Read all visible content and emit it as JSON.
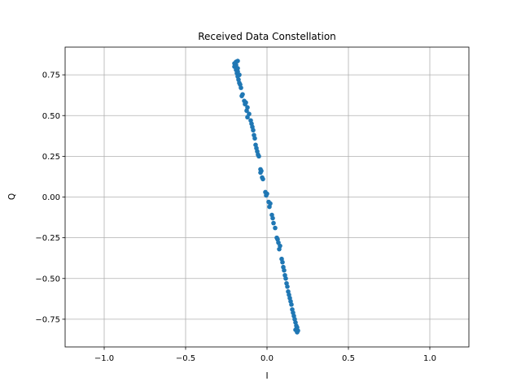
{
  "chart_data": {
    "type": "scatter",
    "title": "Received Data Constellation",
    "xlabel": "I",
    "ylabel": "Q",
    "xlim": [
      -1.24,
      1.24
    ],
    "ylim": [
      -0.92,
      0.92
    ],
    "x_ticks": [
      -1.0,
      -0.5,
      0.0,
      0.5,
      1.0
    ],
    "x_tick_labels": [
      "−1.0",
      "−0.5",
      "0.0",
      "0.5",
      "1.0"
    ],
    "y_ticks": [
      -0.75,
      -0.5,
      -0.25,
      0.0,
      0.25,
      0.5,
      0.75
    ],
    "y_tick_labels": [
      "−0.75",
      "−0.50",
      "−0.25",
      "0.00",
      "0.25",
      "0.50",
      "0.75"
    ],
    "grid": true,
    "marker_color": "#1f77b4",
    "series": [
      {
        "points": [
          [
            -0.19,
            0.83
          ],
          [
            -0.2,
            0.82
          ],
          [
            -0.18,
            0.835
          ],
          [
            -0.19,
            0.81
          ],
          [
            -0.2,
            0.8
          ],
          [
            -0.18,
            0.79
          ],
          [
            -0.19,
            0.78
          ],
          [
            -0.18,
            0.77
          ],
          [
            -0.185,
            0.76
          ],
          [
            -0.17,
            0.75
          ],
          [
            -0.18,
            0.74
          ],
          [
            -0.175,
            0.72
          ],
          [
            -0.17,
            0.7
          ],
          [
            -0.165,
            0.69
          ],
          [
            -0.16,
            0.67
          ],
          [
            -0.15,
            0.63
          ],
          [
            -0.155,
            0.62
          ],
          [
            -0.14,
            0.59
          ],
          [
            -0.13,
            0.58
          ],
          [
            -0.135,
            0.57
          ],
          [
            -0.12,
            0.55
          ],
          [
            -0.125,
            0.53
          ],
          [
            -0.11,
            0.51
          ],
          [
            -0.12,
            0.49
          ],
          [
            -0.1,
            0.47
          ],
          [
            -0.095,
            0.45
          ],
          [
            -0.09,
            0.43
          ],
          [
            -0.085,
            0.41
          ],
          [
            -0.08,
            0.38
          ],
          [
            -0.075,
            0.36
          ],
          [
            -0.07,
            0.32
          ],
          [
            -0.065,
            0.3
          ],
          [
            -0.06,
            0.28
          ],
          [
            -0.055,
            0.26
          ],
          [
            -0.05,
            0.25
          ],
          [
            -0.04,
            0.17
          ],
          [
            -0.035,
            0.16
          ],
          [
            -0.04,
            0.15
          ],
          [
            -0.03,
            0.12
          ],
          [
            -0.025,
            0.11
          ],
          [
            -0.01,
            0.03
          ],
          [
            0.0,
            0.02
          ],
          [
            -0.005,
            0.01
          ],
          [
            0.01,
            -0.03
          ],
          [
            0.02,
            -0.04
          ],
          [
            0.015,
            -0.06
          ],
          [
            0.03,
            -0.11
          ],
          [
            0.035,
            -0.13
          ],
          [
            0.04,
            -0.16
          ],
          [
            0.05,
            -0.19
          ],
          [
            0.06,
            -0.25
          ],
          [
            0.065,
            -0.26
          ],
          [
            0.07,
            -0.28
          ],
          [
            0.08,
            -0.3
          ],
          [
            0.075,
            -0.32
          ],
          [
            0.09,
            -0.38
          ],
          [
            0.095,
            -0.4
          ],
          [
            0.1,
            -0.43
          ],
          [
            0.105,
            -0.45
          ],
          [
            0.11,
            -0.48
          ],
          [
            0.115,
            -0.5
          ],
          [
            0.12,
            -0.53
          ],
          [
            0.125,
            -0.55
          ],
          [
            0.13,
            -0.58
          ],
          [
            0.135,
            -0.6
          ],
          [
            0.14,
            -0.62
          ],
          [
            0.145,
            -0.64
          ],
          [
            0.15,
            -0.66
          ],
          [
            0.155,
            -0.69
          ],
          [
            0.16,
            -0.71
          ],
          [
            0.165,
            -0.73
          ],
          [
            0.17,
            -0.75
          ],
          [
            0.175,
            -0.77
          ],
          [
            0.18,
            -0.79
          ],
          [
            0.185,
            -0.8
          ],
          [
            0.18,
            -0.81
          ],
          [
            0.19,
            -0.82
          ],
          [
            0.185,
            -0.83
          ],
          [
            0.175,
            -0.815
          ]
        ]
      }
    ]
  }
}
